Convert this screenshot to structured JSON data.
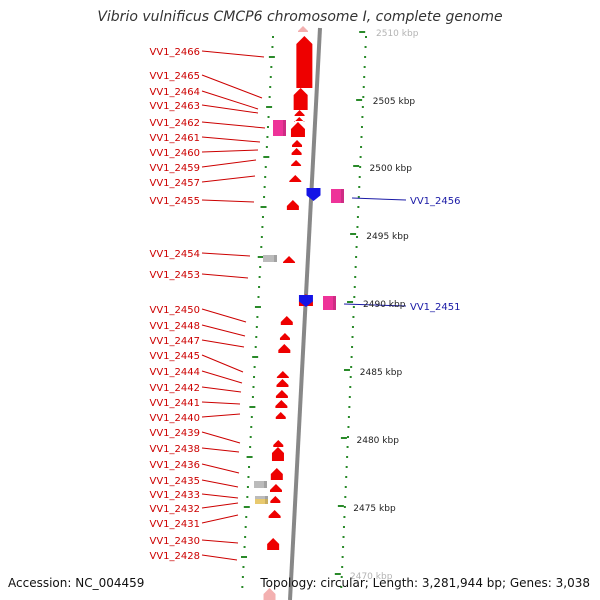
{
  "title": "Vibrio vulnificus CMCP6 chromosome I, complete genome",
  "accession_text": "Accession: NC_004459",
  "topology_text": "Topology: circular; Length: 3,281,944 bp; Genes: 3,038",
  "colors": {
    "forward_gene": "#ee0000",
    "reverse_gene": "#1414e6",
    "rna_gene": "#ee3399",
    "pseudo_gene": "#bbbbbb",
    "backbone": "#888888",
    "tick": "#2a8a2a",
    "forward_label": "#cc0000",
    "reverse_label": "#1a1aa6"
  },
  "kbp_labels": [
    "2510 kbp",
    "2505 kbp",
    "2500 kbp",
    "2495 kbp",
    "2490 kbp",
    "2485 kbp",
    "2480 kbp",
    "2475 kbp",
    "2470 kbp"
  ],
  "forward_labels": [
    "VV1_2466",
    "VV1_2465",
    "VV1_2464",
    "VV1_2463",
    "VV1_2462",
    "VV1_2461",
    "VV1_2460",
    "VV1_2459",
    "VV1_2457",
    "VV1_2455",
    "VV1_2454",
    "VV1_2453",
    "VV1_2450",
    "VV1_2448",
    "VV1_2447",
    "VV1_2445",
    "VV1_2444",
    "VV1_2442",
    "VV1_2441",
    "VV1_2440",
    "VV1_2439",
    "VV1_2438",
    "VV1_2436",
    "VV1_2435",
    "VV1_2433",
    "VV1_2432",
    "VV1_2431",
    "VV1_2430",
    "VV1_2428"
  ],
  "reverse_labels": [
    "VV1_2456",
    "VV1_2451"
  ]
}
